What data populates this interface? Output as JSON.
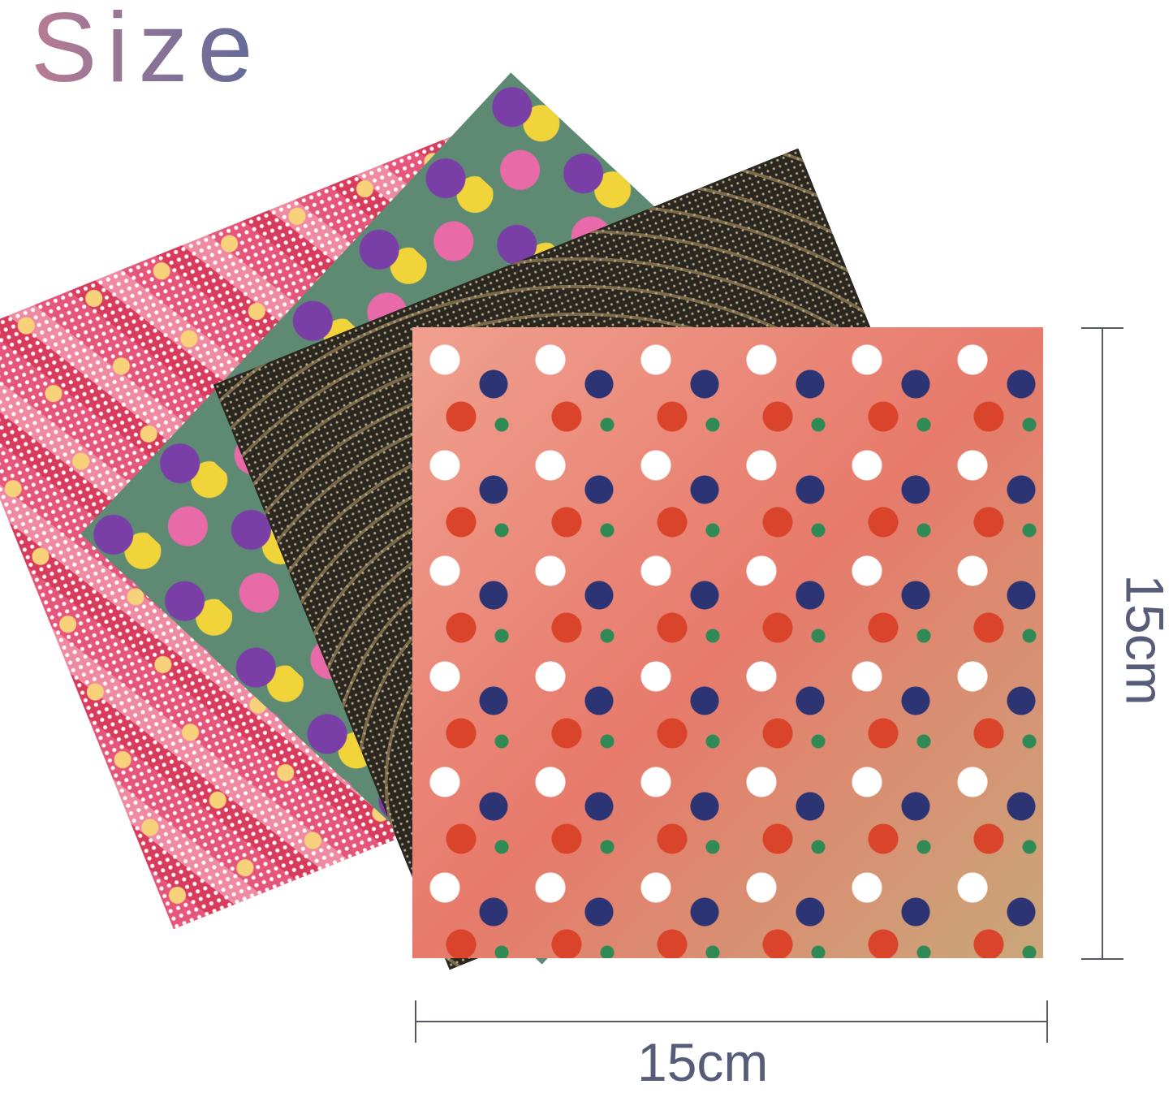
{
  "title": "Size",
  "dimensions": {
    "width_label": "15cm",
    "height_label": "15cm"
  },
  "colors": {
    "title_start": "#b97c93",
    "title_end": "#5f6a98",
    "dimension_text": "#575d78"
  }
}
